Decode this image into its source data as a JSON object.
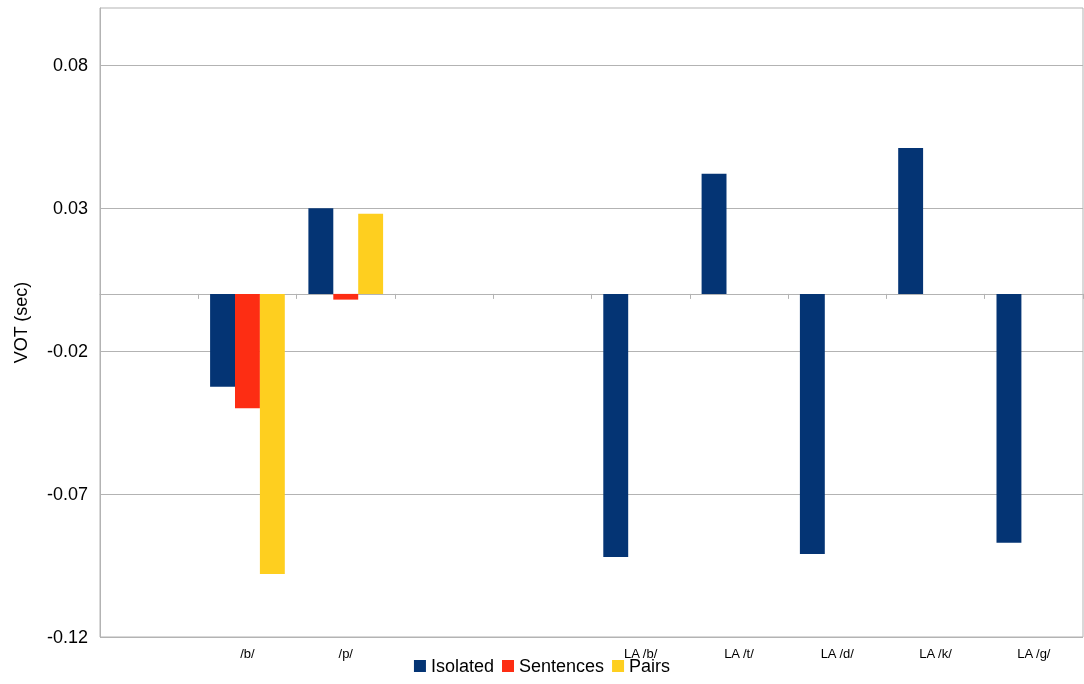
{
  "chart_data": {
    "type": "bar",
    "ylabel": "VOT (sec)",
    "categories": [
      null,
      "/b/",
      "/p/",
      null,
      null,
      "LA /b/",
      "LA /t/",
      "LA /d/",
      "LA /k/",
      "LA /g/"
    ],
    "series": [
      {
        "name": "Isolated",
        "color": "#043474",
        "values": [
          null,
          -0.0325,
          0.03,
          null,
          null,
          -0.092,
          0.042,
          -0.091,
          0.051,
          -0.087
        ]
      },
      {
        "name": "Sentences",
        "color": "#fd2d13",
        "values": [
          null,
          -0.04,
          -0.002,
          null,
          null,
          null,
          null,
          null,
          null,
          null
        ]
      },
      {
        "name": "Pairs",
        "color": "#fecf1f",
        "values": [
          null,
          -0.098,
          0.028,
          null,
          null,
          null,
          null,
          null,
          null,
          null
        ]
      }
    ],
    "ylim": [
      -0.12,
      0.1
    ],
    "yticks": [
      -0.12,
      -0.07,
      -0.02,
      0.03,
      0.08
    ],
    "grid": "y",
    "legend": "bottom"
  }
}
